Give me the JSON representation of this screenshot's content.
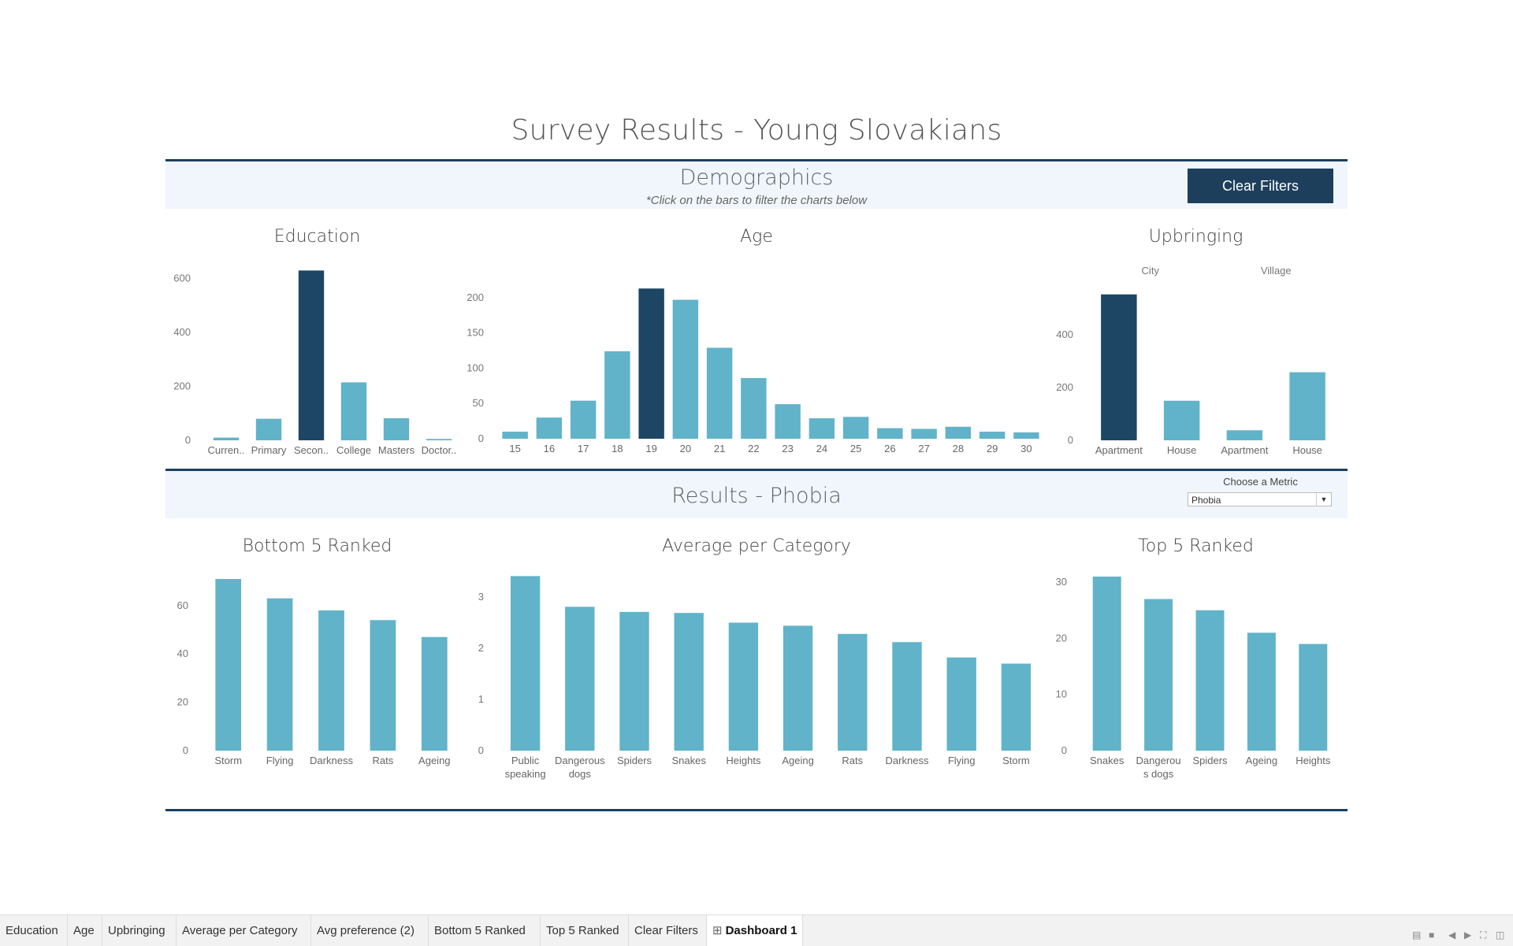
{
  "page_title": "Survey Results - Young Slovakians",
  "demographics": {
    "title": "Demographics",
    "subtitle": "*Click on the bars to filter the charts below",
    "clear_filters_label": "Clear Filters"
  },
  "results": {
    "title": "Results - Phobia",
    "metric_label": "Choose a Metric",
    "metric_value": "Phobia"
  },
  "colors": {
    "bar": "#61b3c9",
    "selected": "#1d4664",
    "rule": "#1b3f5e",
    "band": "#f0f6fc",
    "button": "#1d3f5c"
  },
  "chart_data": [
    {
      "id": "education",
      "type": "bar",
      "title": "Education",
      "categories": [
        "Curren..",
        "Primary",
        "Secon..",
        "College",
        "Masters",
        "Doctor.."
      ],
      "values": [
        10,
        80,
        630,
        215,
        82,
        5
      ],
      "selected": [
        false,
        false,
        true,
        false,
        false,
        false
      ],
      "yticks": [
        0,
        200,
        400,
        600
      ],
      "ylim": [
        0,
        640
      ],
      "xlabel": "",
      "ylabel": ""
    },
    {
      "id": "age",
      "type": "bar",
      "title": "Age",
      "categories": [
        "15",
        "16",
        "17",
        "18",
        "19",
        "20",
        "21",
        "22",
        "23",
        "24",
        "25",
        "26",
        "27",
        "28",
        "29",
        "30"
      ],
      "values": [
        10,
        30,
        54,
        124,
        213,
        197,
        129,
        86,
        49,
        29,
        31,
        15,
        14,
        17,
        10,
        9
      ],
      "selected": [
        false,
        false,
        false,
        false,
        true,
        false,
        false,
        false,
        false,
        false,
        false,
        false,
        false,
        false,
        false,
        false
      ],
      "yticks": [
        0,
        50,
        100,
        150,
        200
      ],
      "ylim": [
        0,
        220
      ],
      "xlabel": "",
      "ylabel": ""
    },
    {
      "id": "upbringing",
      "type": "bar",
      "title": "Upbringing",
      "groups": [
        "City",
        "Village"
      ],
      "categories": [
        "Apartment",
        "House",
        "Apartment",
        "House"
      ],
      "values": [
        553,
        150,
        38,
        258
      ],
      "selected": [
        true,
        false,
        false,
        false
      ],
      "yticks": [
        0,
        200,
        400
      ],
      "ylim": [
        0,
        600
      ],
      "xlabel": "",
      "ylabel": ""
    },
    {
      "id": "bottom5",
      "type": "bar",
      "title": "Bottom 5 Ranked",
      "categories": [
        "Storm",
        "Flying",
        "Darkness",
        "Rats",
        "Ageing"
      ],
      "values": [
        71,
        63,
        58,
        54,
        47
      ],
      "yticks": [
        0,
        20,
        40,
        60
      ],
      "ylim": [
        0,
        72
      ],
      "xlabel": "",
      "ylabel": ""
    },
    {
      "id": "avg",
      "type": "bar",
      "title": "Average per Category",
      "categories": [
        "Public speaking",
        "Dangerous dogs",
        "Spiders",
        "Snakes",
        "Heights",
        "Ageing",
        "Rats",
        "Darkness",
        "Flying",
        "Storm"
      ],
      "values": [
        3.41,
        2.81,
        2.71,
        2.69,
        2.5,
        2.44,
        2.28,
        2.12,
        1.82,
        1.7
      ],
      "yticks": [
        0,
        1,
        2,
        3
      ],
      "ylim": [
        0,
        3.4
      ],
      "xlabel": "",
      "ylabel": ""
    },
    {
      "id": "top5",
      "type": "bar",
      "title": "Top 5 Ranked",
      "categories": [
        "Snakes",
        "Dangerous dogs",
        "Spiders",
        "Ageing",
        "Heights"
      ],
      "values": [
        31,
        27,
        25,
        21,
        19
      ],
      "yticks": [
        0,
        10,
        20,
        30
      ],
      "ylim": [
        0,
        31
      ],
      "xlabel": "",
      "ylabel": ""
    }
  ],
  "tabs": [
    {
      "label": "Education",
      "active": false
    },
    {
      "label": "Age",
      "active": false
    },
    {
      "label": "Upbringing",
      "active": false
    },
    {
      "label": "Average per Category",
      "active": false
    },
    {
      "label": "Avg preference (2)",
      "active": false
    },
    {
      "label": "Bottom 5 Ranked",
      "active": false
    },
    {
      "label": "Top 5 Ranked",
      "active": false
    },
    {
      "label": "Clear Filters",
      "active": false
    },
    {
      "label": "Dashboard 1",
      "active": true,
      "icon": "dashboard-grid-icon"
    }
  ]
}
